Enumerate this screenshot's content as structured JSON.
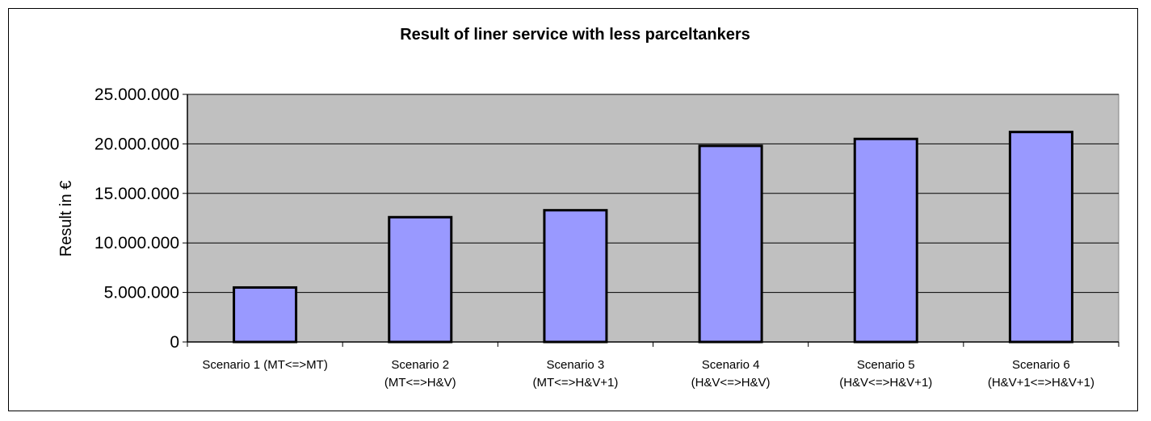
{
  "chart_data": {
    "type": "bar",
    "title": "Result of liner service with less parceltankers",
    "ylabel": "Result in €",
    "xlabel": "",
    "ylim": [
      0,
      25000000
    ],
    "yticks": [
      0,
      5000000,
      10000000,
      15000000,
      20000000,
      25000000
    ],
    "ytick_labels": [
      "0",
      "5.000.000",
      "10.000.000",
      "15.000.000",
      "20.000.000",
      "25.000.000"
    ],
    "categories": [
      [
        "Scenario 1 (MT<=>MT)"
      ],
      [
        "Scenario 2",
        "(MT<=>H&V)"
      ],
      [
        "Scenario 3",
        "(MT<=>H&V+1)"
      ],
      [
        "Scenario 4",
        "(H&V<=>H&V)"
      ],
      [
        "Scenario 5",
        "(H&V<=>H&V+1)"
      ],
      [
        "Scenario 6",
        "(H&V+1<=>H&V+1)"
      ]
    ],
    "values": [
      5500000,
      12600000,
      13300000,
      19800000,
      20500000,
      21200000
    ],
    "grid": true,
    "legend": "none",
    "colors": {
      "bar_fill": "#9999ff",
      "bar_stroke": "#000000",
      "plot_background": "#c0c0c0",
      "gridline": "#000000"
    }
  }
}
